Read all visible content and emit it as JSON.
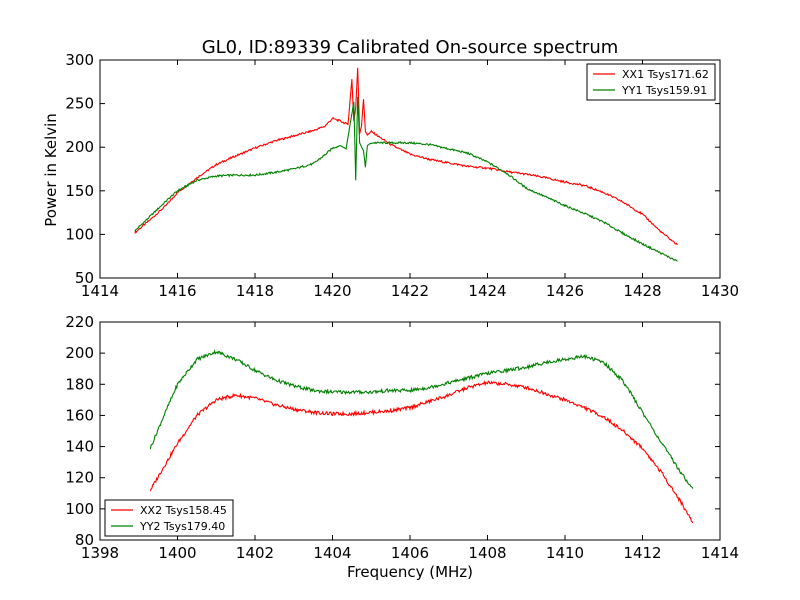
{
  "figure": {
    "title": "GL0, ID:89339 Calibrated On-source spectrum",
    "xlabel": "Frequency (MHz)",
    "ylabel": "Power in Kelvin"
  },
  "chart_data": [
    {
      "type": "line",
      "title": "GL0, ID:89339 Calibrated On-source spectrum",
      "xlabel": "",
      "ylabel": "Power in Kelvin",
      "xlim": [
        1414,
        1430
      ],
      "ylim": [
        50,
        300
      ],
      "xticks": [
        1414,
        1416,
        1418,
        1420,
        1422,
        1424,
        1426,
        1428,
        1430
      ],
      "yticks": [
        50,
        100,
        150,
        200,
        250,
        300
      ],
      "legend_position": "top-right",
      "series": [
        {
          "name": "XX1 Tsys171.62",
          "color": "#ff0000",
          "x": [
            1414.9,
            1415.3,
            1415.7,
            1416.0,
            1416.5,
            1417.0,
            1417.5,
            1418.0,
            1418.5,
            1419.0,
            1419.5,
            1419.8,
            1420.0,
            1420.2,
            1420.4,
            1420.5,
            1420.55,
            1420.6,
            1420.65,
            1420.7,
            1420.75,
            1420.8,
            1420.85,
            1420.9,
            1421.0,
            1421.2,
            1421.5,
            1422.0,
            1422.5,
            1423.0,
            1423.5,
            1424.0,
            1424.5,
            1425.0,
            1425.5,
            1426.0,
            1426.5,
            1427.0,
            1427.5,
            1428.0,
            1428.5,
            1428.9
          ],
          "y": [
            102,
            117,
            133,
            148,
            165,
            180,
            190,
            199,
            207,
            213,
            219,
            224,
            233,
            230,
            226,
            278,
            230,
            245,
            291,
            215,
            225,
            255,
            218,
            214,
            218,
            212,
            203,
            192,
            186,
            182,
            178,
            176,
            172,
            169,
            165,
            160,
            156,
            148,
            137,
            123,
            102,
            88
          ]
        },
        {
          "name": "YY1 Tsys159.91",
          "color": "#008000",
          "x": [
            1414.9,
            1415.3,
            1415.7,
            1416.0,
            1416.5,
            1417.0,
            1417.5,
            1418.0,
            1418.5,
            1419.0,
            1419.5,
            1419.8,
            1420.0,
            1420.2,
            1420.35,
            1420.45,
            1420.55,
            1420.6,
            1420.65,
            1420.7,
            1420.8,
            1420.85,
            1420.9,
            1421.0,
            1421.5,
            1422.0,
            1422.5,
            1423.0,
            1423.5,
            1424.0,
            1424.5,
            1425.0,
            1425.5,
            1426.0,
            1426.5,
            1427.0,
            1427.5,
            1428.0,
            1428.5,
            1428.9
          ],
          "y": [
            104,
            121,
            138,
            150,
            162,
            167,
            168,
            168,
            171,
            175,
            181,
            191,
            199,
            202,
            198,
            225,
            252,
            162,
            258,
            205,
            196,
            177,
            202,
            205,
            205,
            205,
            203,
            198,
            193,
            183,
            170,
            153,
            143,
            133,
            124,
            114,
            101,
            89,
            78,
            69
          ]
        }
      ]
    },
    {
      "type": "line",
      "title": "",
      "xlabel": "Frequency (MHz)",
      "ylabel": "",
      "xlim": [
        1398,
        1414
      ],
      "ylim": [
        80,
        220
      ],
      "xticks": [
        1398,
        1400,
        1402,
        1404,
        1406,
        1408,
        1410,
        1412,
        1414
      ],
      "yticks": [
        80,
        100,
        120,
        140,
        160,
        180,
        200,
        220
      ],
      "legend_position": "bottom-left",
      "series": [
        {
          "name": "XX2 Tsys158.45",
          "color": "#ff0000",
          "x": [
            1399.3,
            1399.6,
            1400.0,
            1400.5,
            1401.0,
            1401.5,
            1402.0,
            1402.5,
            1403.0,
            1403.5,
            1404.0,
            1404.5,
            1405.0,
            1405.5,
            1406.0,
            1406.5,
            1407.0,
            1407.5,
            1408.0,
            1408.5,
            1409.0,
            1409.5,
            1410.0,
            1410.5,
            1411.0,
            1411.5,
            1412.0,
            1412.5,
            1413.0,
            1413.3
          ],
          "y": [
            112,
            125,
            142,
            160,
            170,
            173,
            171,
            167,
            164,
            162,
            161,
            161,
            162,
            163,
            165,
            169,
            173,
            178,
            181,
            180,
            178,
            174,
            170,
            165,
            159,
            150,
            139,
            123,
            104,
            91
          ]
        },
        {
          "name": "YY2 Tsys179.40",
          "color": "#008000",
          "x": [
            1399.3,
            1399.6,
            1400.0,
            1400.5,
            1401.0,
            1401.5,
            1402.0,
            1402.5,
            1403.0,
            1403.5,
            1404.0,
            1404.5,
            1405.0,
            1405.5,
            1406.0,
            1406.5,
            1407.0,
            1407.5,
            1408.0,
            1408.5,
            1409.0,
            1409.5,
            1410.0,
            1410.5,
            1411.0,
            1411.5,
            1412.0,
            1412.5,
            1413.0,
            1413.3
          ],
          "y": [
            139,
            157,
            180,
            196,
            201,
            196,
            189,
            183,
            179,
            176,
            175,
            175,
            175,
            176,
            176,
            178,
            181,
            184,
            187,
            189,
            191,
            194,
            196,
            198,
            194,
            182,
            162,
            142,
            123,
            113
          ]
        }
      ]
    }
  ]
}
